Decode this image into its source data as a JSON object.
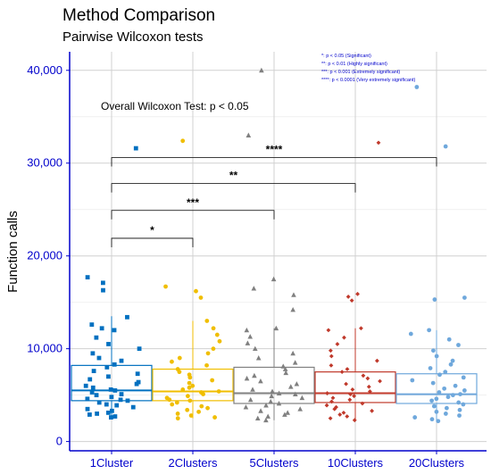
{
  "chart_data": {
    "type": "boxplot-jitter",
    "title": "Method Comparison",
    "subtitle": "Pairwise Wilcoxon tests",
    "ylabel": "Function calls",
    "xlabel": "",
    "ylim": [
      -1000,
      42000
    ],
    "yticks": [
      0,
      10000,
      20000,
      30000,
      40000
    ],
    "ytick_labels": [
      "0",
      "10,000",
      "20,000",
      "30,000",
      "40,000"
    ],
    "grid": true,
    "legend_position": "top-right",
    "annotation": "Overall Wilcoxon Test: p < 0.05",
    "legend": [
      "*: p < 0.05 (Significant)",
      "**: p < 0.01 (Highly significant)",
      "***: p < 0.001 (Extremely significant)",
      "****: p < 0.0001 (Very extremely significant)"
    ],
    "categories": [
      "1Cluster",
      "2Clusters",
      "5Clusters",
      "10Clusters",
      "20Clusters"
    ],
    "series": [
      {
        "color": "#0070C0",
        "shape": "square",
        "q1": 4400,
        "median": 5500,
        "q3": 8200,
        "whisker_low": 2600,
        "whisker_high": 13500,
        "points": [
          2600,
          2700,
          2900,
          3000,
          3100,
          3300,
          3500,
          3700,
          3900,
          4000,
          4200,
          4400,
          4500,
          4600,
          4800,
          5000,
          5100,
          5300,
          5500,
          5600,
          5800,
          6000,
          6200,
          6400,
          6700,
          7000,
          7300,
          7600,
          8000,
          8300,
          8700,
          9000,
          9500,
          10000,
          10500,
          11200,
          12000,
          12200,
          12600,
          13400,
          16300,
          17100,
          17700,
          31600
        ]
      },
      {
        "color": "#F0BE00",
        "shape": "circle",
        "q1": 4400,
        "median": 5400,
        "q3": 7800,
        "whisker_low": 2500,
        "whisker_high": 13000,
        "points": [
          2500,
          2600,
          2800,
          3000,
          3200,
          3400,
          3600,
          3800,
          4000,
          4200,
          4400,
          4500,
          4700,
          4900,
          5100,
          5300,
          5400,
          5600,
          5800,
          6000,
          6300,
          6600,
          6900,
          7200,
          7500,
          7800,
          8200,
          8600,
          9000,
          9500,
          10000,
          10800,
          11500,
          12200,
          13000,
          15500,
          16200,
          16700,
          32400
        ]
      },
      {
        "color": "#808080",
        "shape": "triangle",
        "q1": 4100,
        "median": 5200,
        "q3": 8000,
        "whisker_low": 2300,
        "whisker_high": 12200,
        "points": [
          2300,
          2500,
          2700,
          2900,
          3100,
          3300,
          3500,
          3700,
          3900,
          4100,
          4300,
          4500,
          4700,
          4900,
          5100,
          5200,
          5400,
          5600,
          5900,
          6200,
          6500,
          6800,
          7100,
          7400,
          7800,
          8100,
          8500,
          9000,
          9500,
          10000,
          10600,
          11300,
          12000,
          12200,
          14200,
          15800,
          16500,
          17500,
          33000,
          40000
        ]
      },
      {
        "color": "#C0392B",
        "shape": "diamond",
        "q1": 4200,
        "median": 5200,
        "q3": 7500,
        "whisker_low": 2300,
        "whisker_high": 12200,
        "points": [
          2300,
          2500,
          2700,
          2900,
          3100,
          3300,
          3500,
          3700,
          3900,
          4100,
          4300,
          4500,
          4700,
          4900,
          5100,
          5200,
          5400,
          5600,
          5900,
          6200,
          6500,
          6800,
          7100,
          7500,
          7800,
          8200,
          8700,
          9200,
          9800,
          10500,
          11200,
          12000,
          12200,
          15200,
          15600,
          15900,
          32200
        ]
      },
      {
        "color": "#6FA8DC",
        "shape": "circle",
        "q1": 4100,
        "median": 5100,
        "q3": 7300,
        "whisker_low": 2200,
        "whisker_high": 12000,
        "points": [
          2200,
          2400,
          2600,
          2800,
          3000,
          3200,
          3400,
          3600,
          3800,
          4000,
          4200,
          4400,
          4600,
          4800,
          5000,
          5100,
          5300,
          5500,
          5700,
          6000,
          6300,
          6600,
          6900,
          7200,
          7500,
          7900,
          8300,
          8700,
          9200,
          9800,
          10400,
          11000,
          11600,
          12000,
          15300,
          15500,
          31800,
          38200
        ]
      }
    ],
    "brackets": [
      {
        "from": 0,
        "to": 1,
        "y": 21900,
        "label": "*"
      },
      {
        "from": 0,
        "to": 2,
        "y": 24900,
        "label": "***"
      },
      {
        "from": 0,
        "to": 3,
        "y": 27800,
        "label": "**"
      },
      {
        "from": 0,
        "to": 4,
        "y": 30600,
        "label": "****"
      }
    ]
  }
}
